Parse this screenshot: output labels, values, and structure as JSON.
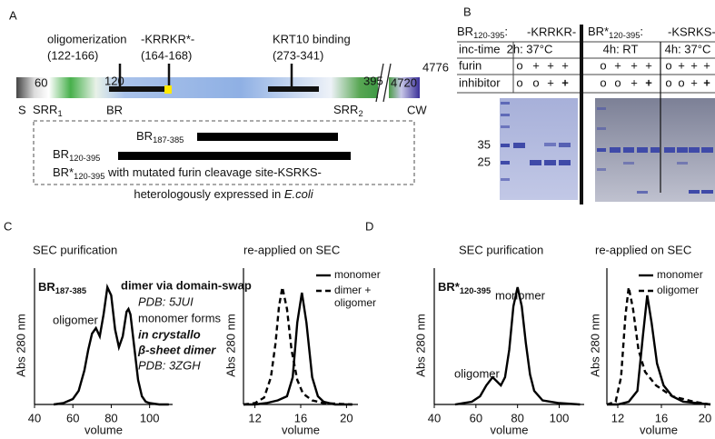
{
  "panel_a": {
    "label": "A",
    "annotations": [
      {
        "name": "oligomerization",
        "range": "(122-166)"
      },
      {
        "name": "-KRRKR*-",
        "range": "(164-168)"
      },
      {
        "name": "KRT10 binding",
        "range": "(273-341)"
      }
    ],
    "positions": [
      60,
      120,
      395,
      4720,
      4776
    ],
    "domains": [
      "S",
      {
        "base": "SRR",
        "sub": "1"
      },
      "BR",
      {
        "base": "SRR",
        "sub": "2"
      },
      "CW"
    ],
    "constructs": [
      {
        "base": "BR",
        "sub": "187-385"
      },
      {
        "base": "BR",
        "sub": "120-395"
      },
      {
        "base": "BR*",
        "sub": "120-395",
        "suffix": " with mutated furin cleavage site-KSRKS-"
      }
    ],
    "note": {
      "base": "heterologously expressed in ",
      "italic": "E.coli"
    }
  },
  "panel_b": {
    "label": "B",
    "row_labels": [
      "inc-time",
      "furin",
      "inhibitor"
    ],
    "groups": [
      {
        "construct": {
          "base": "BR",
          "sub": "120-395",
          "suffix": ":"
        },
        "site": "-KRRKR-",
        "conditions": [
          {
            "time": "2h: 37°C",
            "furin": [
              "o",
              "+",
              "+",
              "+"
            ],
            "inhibitor": [
              "o",
              "o",
              "+",
              "+"
            ]
          }
        ]
      },
      {
        "construct": {
          "base": "BR*",
          "sub": "120-395",
          "suffix": ":"
        },
        "site": "-KSRKS-",
        "conditions": [
          {
            "time": "4h: RT",
            "furin": [
              "o",
              "+",
              "+",
              "+"
            ],
            "inhibitor": [
              "o",
              "o",
              "+",
              "+"
            ]
          },
          {
            "time": "4h: 37°C",
            "furin": [
              "o",
              "+",
              "+",
              "+"
            ],
            "inhibitor": [
              "o",
              "o",
              "+",
              "+"
            ]
          }
        ]
      }
    ],
    "markers": [
      35,
      25
    ]
  },
  "panel_c": {
    "label": "C",
    "charts": [
      {
        "type": "line",
        "title": "SEC purification",
        "heading": {
          "base": "BR",
          "sub": "187-385"
        },
        "xlabel": "volume",
        "ylabel": "Abs 280 nm",
        "xlim": [
          40,
          112
        ],
        "xticks": [
          40,
          60,
          80,
          100
        ],
        "ylim": [
          0,
          1
        ],
        "series": [
          {
            "color": "#000000",
            "style": "solid",
            "x": [
              50,
              55,
              60,
              63,
              66,
              68,
              70,
              72,
              74,
              76,
              78,
              80,
              82,
              84,
              86,
              88,
              89,
              90,
              92,
              94,
              96,
              98,
              100,
              105,
              110
            ],
            "values": [
              0,
              0.01,
              0.04,
              0.1,
              0.25,
              0.4,
              0.52,
              0.56,
              0.5,
              0.66,
              0.86,
              0.8,
              0.55,
              0.42,
              0.5,
              0.68,
              0.7,
              0.66,
              0.42,
              0.18,
              0.06,
              0.02,
              0.01,
              0,
              0
            ]
          }
        ],
        "annotations": [
          "oligomer",
          "dimer via domain-swap",
          "PDB: 5JUI",
          "monomer forms",
          "in crystallo",
          "β-sheet dimer",
          "PDB: 3ZGH"
        ]
      },
      {
        "type": "line",
        "title": "re-applied on SEC",
        "xlabel": "volume",
        "ylabel": "Abs 280 nm",
        "xlim": [
          11,
          21
        ],
        "xticks": [
          12,
          16,
          20
        ],
        "ylim": [
          0,
          1
        ],
        "series": [
          {
            "name": "monomer",
            "color": "#000000",
            "style": "solid",
            "x": [
              11,
              12,
              13,
              14,
              14.8,
              15.3,
              15.7,
              16.1,
              16.5,
              17,
              17.5,
              18,
              19,
              20.5
            ],
            "values": [
              0,
              0,
              0.01,
              0.03,
              0.06,
              0.2,
              0.6,
              0.82,
              0.6,
              0.2,
              0.06,
              0.02,
              0,
              0
            ]
          },
          {
            "name": "dimer + oligomer",
            "color": "#000000",
            "style": "dashed",
            "x": [
              11,
              12,
              12.8,
              13.4,
              13.8,
              14.1,
              14.4,
              14.8,
              15.2,
              15.7,
              16.2,
              17,
              18,
              20.5
            ],
            "values": [
              0,
              0.01,
              0.05,
              0.2,
              0.45,
              0.72,
              0.86,
              0.7,
              0.4,
              0.18,
              0.08,
              0.03,
              0.01,
              0
            ]
          }
        ]
      }
    ]
  },
  "panel_d": {
    "label": "D",
    "charts": [
      {
        "type": "line",
        "title": "SEC purification",
        "heading": {
          "base": "BR*",
          "sub": "120-395"
        },
        "xlabel": "volume",
        "ylabel": "Abs 280 nm",
        "xlim": [
          40,
          112
        ],
        "xticks": [
          40,
          60,
          80,
          100
        ],
        "ylim": [
          0,
          1
        ],
        "series": [
          {
            "color": "#000000",
            "style": "solid",
            "x": [
              50,
              58,
              62,
              65,
              68,
              70,
              72,
              74,
              76,
              78,
              80,
              82,
              84,
              86,
              88,
              92,
              100,
              110
            ],
            "values": [
              0,
              0.02,
              0.06,
              0.14,
              0.2,
              0.17,
              0.14,
              0.2,
              0.4,
              0.72,
              0.86,
              0.72,
              0.45,
              0.22,
              0.1,
              0.03,
              0.01,
              0
            ]
          }
        ],
        "annotations": [
          "oligomer",
          "monomer"
        ]
      },
      {
        "type": "line",
        "title": "re-applied on SEC",
        "xlabel": "volume",
        "ylabel": "Abs 280 nm",
        "xlim": [
          11,
          20.5
        ],
        "xticks": [
          12,
          16,
          20
        ],
        "ylim": [
          0,
          1
        ],
        "series": [
          {
            "name": "monomer",
            "color": "#000000",
            "style": "solid",
            "x": [
              11,
              12,
              13,
              13.8,
              14.3,
              14.7,
              15.1,
              15.6,
              16.2,
              17,
              18,
              20.5
            ],
            "values": [
              0,
              0,
              0.02,
              0.1,
              0.5,
              0.8,
              0.6,
              0.3,
              0.14,
              0.06,
              0.02,
              0
            ]
          },
          {
            "name": "oligomer",
            "color": "#000000",
            "style": "dashed",
            "x": [
              11,
              11.8,
              12.3,
              12.7,
              13,
              13.4,
              13.9,
              14.5,
              15.5,
              17,
              19,
              20.5
            ],
            "values": [
              0,
              0.02,
              0.2,
              0.65,
              0.86,
              0.7,
              0.4,
              0.24,
              0.14,
              0.06,
              0.02,
              0
            ]
          }
        ]
      }
    ]
  }
}
